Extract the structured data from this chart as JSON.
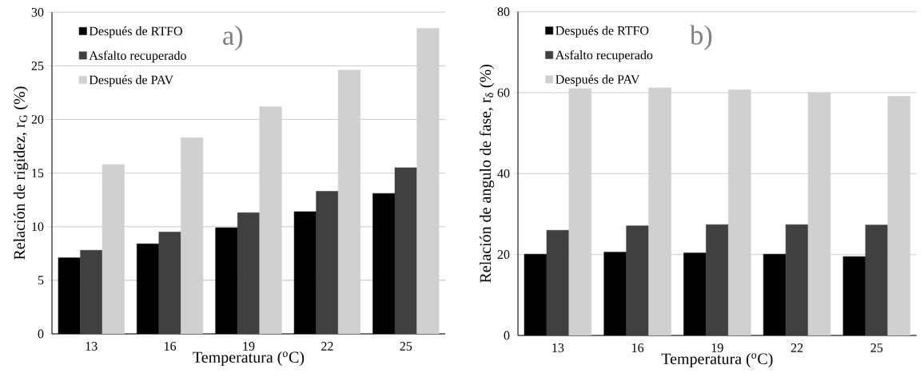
{
  "chart_data": [
    {
      "type": "bar",
      "xlabel": "Temperatura ($^{o}$C)",
      "ylabel": "Relación de rigidez, r$_{G}$ (%)",
      "annotations": [
        "a)"
      ],
      "categories": [
        "13",
        "16",
        "19",
        "22",
        "25"
      ],
      "series": [
        {
          "name": "Después de RTFO",
          "color": "#000000",
          "values": [
            7.1,
            8.4,
            9.9,
            11.4,
            13.1
          ]
        },
        {
          "name": "Asfalto recuperado",
          "color": "#404040",
          "values": [
            7.8,
            9.5,
            11.3,
            13.3,
            15.5
          ]
        },
        {
          "name": "Después de PAV",
          "color": "#d0d0d0",
          "values": [
            15.8,
            18.3,
            21.2,
            24.6,
            28.5
          ]
        }
      ],
      "ylim": [
        0,
        30
      ],
      "yticks": [
        0,
        5,
        10,
        15,
        20,
        25,
        30
      ],
      "grid": "y",
      "legend": "top left"
    },
    {
      "type": "bar",
      "xlabel": "Temperatura ($^{o}$C)",
      "ylabel": "Relación de angulo de fase, r$_{δ}$ (%)",
      "annotations": [
        "b)"
      ],
      "categories": [
        "13",
        "16",
        "19",
        "22",
        "25"
      ],
      "series": [
        {
          "name": "Después de RTFO",
          "color": "#000000",
          "values": [
            20.1,
            20.6,
            20.4,
            20.1,
            19.5
          ]
        },
        {
          "name": "Asfalto recuperado",
          "color": "#404040",
          "values": [
            26,
            27.1,
            27.4,
            27.4,
            27.3
          ]
        },
        {
          "name": "Después de PAV",
          "color": "#d0d0d0",
          "values": [
            61,
            61.2,
            60.7,
            60,
            59.1
          ]
        }
      ],
      "ylim": [
        0,
        80
      ],
      "yticks": [
        0,
        20,
        40,
        60,
        80
      ],
      "grid": "y",
      "legend": "top left"
    }
  ]
}
